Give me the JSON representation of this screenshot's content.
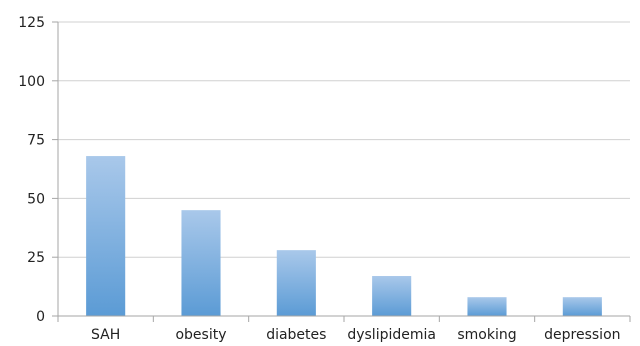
{
  "chart_data": {
    "type": "bar",
    "title": "",
    "xlabel": "",
    "ylabel": "",
    "categories": [
      "SAH",
      "obesity",
      "diabetes",
      "dyslipidemia",
      "smoking",
      "depression"
    ],
    "values": [
      68,
      45,
      28,
      17,
      8,
      8
    ],
    "ylim": [
      0,
      125
    ],
    "yticks": [
      0,
      25,
      50,
      75,
      100,
      125
    ],
    "grid": true,
    "legend": "none",
    "colors": {
      "bar_top": "#a9c8ea",
      "bar_bottom": "#5b9bd5",
      "grid": "#d0d0d0",
      "axis": "#a6a6a6"
    }
  }
}
